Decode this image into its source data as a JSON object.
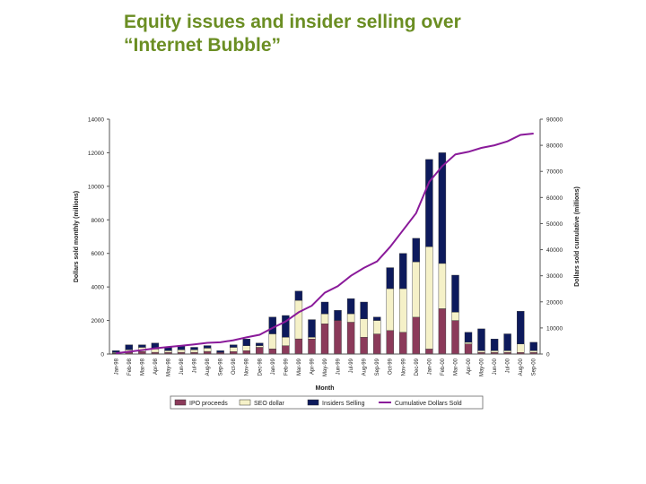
{
  "slide": {
    "title_line1": "Equity issues and insider selling over",
    "title_line2": "“Internet Bubble”"
  },
  "colors": {
    "title": "#6b8e23",
    "ipo": "#8b3a5a",
    "seo": "#f5f1c8",
    "insider": "#0d1a5c",
    "cumulative": "#8a1a9a"
  },
  "chart_data": {
    "type": "bar",
    "stacked": true,
    "categories": [
      "Jan-98",
      "Feb-98",
      "Mar-98",
      "Apr-98",
      "May-98",
      "Jun-98",
      "Jul-98",
      "Aug-98",
      "Sep-98",
      "Oct-98",
      "Nov-98",
      "Dec-98",
      "Jan-99",
      "Feb-99",
      "Mar-99",
      "Apr-99",
      "May-99",
      "Jun-99",
      "Jul-99",
      "Aug-99",
      "Sep-99",
      "Oct-99",
      "Nov-99",
      "Dec-99",
      "Jan-00",
      "Feb-00",
      "Mar-00",
      "Apr-00",
      "May-00",
      "Jun-00",
      "Jul-00",
      "Aug-00",
      "Sep-00"
    ],
    "series": [
      {
        "name": "IPO proceeds",
        "axis": "left",
        "values": [
          50,
          100,
          150,
          100,
          100,
          100,
          100,
          150,
          100,
          150,
          200,
          400,
          300,
          500,
          900,
          900,
          1800,
          2000,
          1900,
          1000,
          1200,
          1400,
          1300,
          2200,
          300,
          2700,
          2000,
          600,
          100,
          100,
          100,
          100,
          100
        ]
      },
      {
        "name": "SEO dollar",
        "axis": "left",
        "values": [
          50,
          150,
          250,
          200,
          100,
          150,
          150,
          200,
          0,
          250,
          300,
          100,
          900,
          500,
          2300,
          100,
          600,
          0,
          500,
          1100,
          800,
          2500,
          2600,
          3300,
          6100,
          2700,
          500,
          100,
          100,
          100,
          100,
          500,
          100
        ]
      },
      {
        "name": "Insiders Selling",
        "axis": "left",
        "values": [
          100,
          300,
          150,
          350,
          200,
          250,
          150,
          150,
          100,
          150,
          400,
          150,
          1000,
          1300,
          550,
          1050,
          700,
          600,
          900,
          1000,
          200,
          1250,
          2100,
          1400,
          5200,
          6600,
          2200,
          600,
          1300,
          700,
          1000,
          1950,
          500
        ]
      },
      {
        "name": "Cumulative Dollars Sold",
        "type": "line",
        "axis": "right",
        "values": [
          300,
          900,
          1500,
          2200,
          2700,
          3200,
          3700,
          4300,
          4500,
          5300,
          6400,
          7400,
          10000,
          12500,
          16000,
          18500,
          23500,
          26000,
          30000,
          33000,
          35500,
          41000,
          47500,
          54000,
          66000,
          72000,
          76500,
          77500,
          79000,
          80000,
          81500,
          84000,
          84500
        ]
      }
    ],
    "xlabel": "Month",
    "ylabel": "Dollars sold monthly (millions)",
    "ylabel_right": "Dollars sold cumulative (millions)",
    "ylim": [
      0,
      14000
    ],
    "ylim_right": [
      0,
      90000
    ],
    "yticks": [
      "0",
      "2000",
      "4000",
      "6000",
      "8000",
      "10000",
      "12000",
      "14000"
    ],
    "yticks_right": [
      "0",
      "10000",
      "20000",
      "30000",
      "40000",
      "50000",
      "60000",
      "70000",
      "80000",
      "90000"
    ],
    "grid": false,
    "legend_position": "bottom"
  }
}
